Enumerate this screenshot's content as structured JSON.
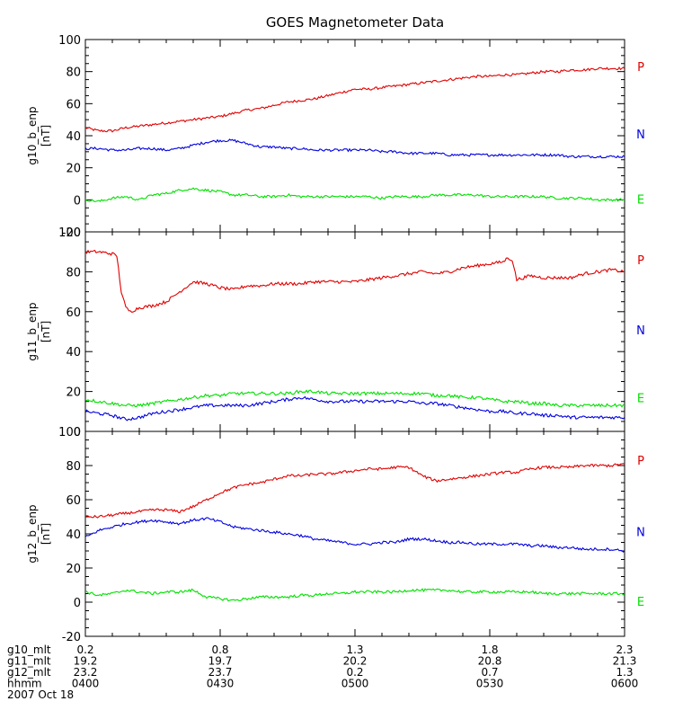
{
  "chart_data": {
    "type": "line",
    "title": "GOES Magnetometer Data",
    "x_ticks": [
      "0400",
      "0430",
      "0500",
      "0530",
      "0600"
    ],
    "x_tick_values_minutes": [
      0,
      30,
      60,
      90,
      120
    ],
    "xlim_minutes": [
      0,
      120
    ],
    "footer": {
      "rows": [
        {
          "label": "g10_mlt",
          "values": [
            "0.2",
            "0.8",
            "1.3",
            "1.8",
            "2.3"
          ]
        },
        {
          "label": "g11_mlt",
          "values": [
            "19.2",
            "19.7",
            "20.2",
            "20.8",
            "21.3"
          ]
        },
        {
          "label": "g12_mlt",
          "values": [
            "23.2",
            "23.7",
            "0.2",
            "0.7",
            "1.3"
          ]
        },
        {
          "label": "hhmm",
          "values": [
            "0400",
            "0430",
            "0500",
            "0530",
            "0600"
          ]
        }
      ],
      "date": "2007 Oct 18"
    },
    "colors": {
      "P": "#e00000",
      "N": "#0000e0",
      "E": "#00e000"
    },
    "panels": [
      {
        "ylabel": "g10_b_enp",
        "unit": "[nT]",
        "ylim": [
          -20,
          100
        ],
        "yticks": [
          -20,
          0,
          20,
          40,
          60,
          80,
          100
        ],
        "legend": [
          "P",
          "N",
          "E"
        ],
        "series": [
          {
            "name": "P",
            "x": [
              0,
              3,
              6,
              9,
              12,
              15,
              18,
              21,
              24,
              27,
              30,
              33,
              36,
              39,
              42,
              45,
              48,
              51,
              54,
              57,
              60,
              63,
              66,
              69,
              72,
              75,
              78,
              81,
              84,
              87,
              90,
              93,
              96,
              99,
              102,
              105,
              108,
              111,
              114,
              117,
              120
            ],
            "y": [
              45,
              43,
              43,
              45,
              46,
              47,
              48,
              49,
              50,
              51,
              52,
              54,
              56,
              57,
              59,
              61,
              62,
              63,
              65,
              67,
              69,
              69,
              70,
              71,
              72,
              73,
              74,
              75,
              76,
              77,
              77,
              78,
              78,
              79,
              80,
              80,
              81,
              81,
              82,
              82,
              82
            ]
          },
          {
            "name": "N",
            "x": [
              0,
              3,
              6,
              9,
              12,
              15,
              18,
              21,
              24,
              27,
              30,
              33,
              36,
              39,
              42,
              45,
              48,
              51,
              54,
              57,
              60,
              63,
              66,
              69,
              72,
              75,
              78,
              81,
              84,
              87,
              90,
              93,
              96,
              99,
              102,
              105,
              108,
              111,
              114,
              117,
              120
            ],
            "y": [
              32,
              32,
              31,
              31,
              32,
              32,
              31,
              32,
              34,
              36,
              37,
              37,
              35,
              33,
              33,
              32,
              32,
              31,
              31,
              31,
              31,
              31,
              30,
              30,
              29,
              29,
              29,
              28,
              28,
              28,
              28,
              28,
              28,
              28,
              28,
              28,
              27,
              27,
              27,
              27,
              27
            ]
          },
          {
            "name": "E",
            "x": [
              0,
              3,
              6,
              9,
              12,
              15,
              18,
              21,
              24,
              27,
              30,
              33,
              36,
              39,
              42,
              45,
              48,
              51,
              54,
              57,
              60,
              63,
              66,
              69,
              72,
              75,
              78,
              81,
              84,
              87,
              90,
              93,
              96,
              99,
              102,
              105,
              108,
              111,
              114,
              117,
              120
            ],
            "y": [
              0,
              -1,
              1,
              2,
              0,
              3,
              4,
              6,
              7,
              6,
              5,
              3,
              3,
              2,
              2,
              3,
              2,
              2,
              2,
              2,
              2,
              2,
              1,
              2,
              2,
              2,
              3,
              3,
              3,
              3,
              2,
              2,
              2,
              2,
              2,
              1,
              1,
              1,
              0,
              0,
              0
            ]
          }
        ]
      },
      {
        "ylabel": "g11_b_enp",
        "unit": "[nT]",
        "ylim": [
          0,
          100
        ],
        "yticks": [
          0,
          20,
          40,
          60,
          80,
          100
        ],
        "legend": [
          "P",
          "N",
          "E"
        ],
        "series": [
          {
            "name": "P",
            "x": [
              0,
              3,
              6,
              7,
              8,
              9,
              10,
              12,
              15,
              18,
              21,
              24,
              27,
              30,
              33,
              36,
              39,
              42,
              45,
              48,
              51,
              54,
              57,
              60,
              63,
              66,
              69,
              72,
              75,
              78,
              81,
              84,
              87,
              90,
              93,
              94,
              95,
              96,
              99,
              102,
              105,
              108,
              111,
              114,
              117,
              120
            ],
            "y": [
              90,
              90,
              89,
              88,
              70,
              62,
              60,
              62,
              63,
              65,
              70,
              75,
              74,
              72,
              71,
              73,
              73,
              74,
              74,
              74,
              75,
              75,
              75,
              75,
              76,
              77,
              78,
              79,
              80,
              79,
              80,
              82,
              83,
              84,
              85,
              87,
              86,
              76,
              78,
              77,
              77,
              77,
              79,
              80,
              81,
              80
            ]
          },
          {
            "name": "N",
            "x": [
              0,
              3,
              6,
              9,
              12,
              15,
              18,
              21,
              24,
              27,
              30,
              33,
              36,
              39,
              42,
              45,
              48,
              51,
              54,
              57,
              60,
              63,
              66,
              69,
              72,
              75,
              78,
              81,
              84,
              87,
              90,
              93,
              96,
              99,
              102,
              105,
              108,
              111,
              114,
              117,
              120
            ],
            "y": [
              10,
              9,
              8,
              6,
              7,
              9,
              10,
              11,
              12,
              13,
              13,
              13,
              13,
              14,
              15,
              16,
              17,
              16,
              15,
              15,
              15,
              15,
              15,
              15,
              15,
              14,
              14,
              13,
              12,
              11,
              10,
              10,
              9,
              9,
              8,
              8,
              7,
              7,
              7,
              7,
              7
            ]
          },
          {
            "name": "E",
            "x": [
              0,
              3,
              6,
              9,
              12,
              15,
              18,
              21,
              24,
              27,
              30,
              33,
              36,
              39,
              42,
              45,
              48,
              51,
              54,
              57,
              60,
              63,
              66,
              69,
              72,
              75,
              78,
              81,
              84,
              87,
              90,
              93,
              96,
              99,
              102,
              105,
              108,
              111,
              114,
              117,
              120
            ],
            "y": [
              16,
              15,
              14,
              13,
              13,
              14,
              15,
              16,
              17,
              18,
              18,
              19,
              19,
              19,
              19,
              19,
              20,
              20,
              19,
              19,
              19,
              19,
              19,
              19,
              19,
              19,
              18,
              18,
              17,
              17,
              16,
              15,
              15,
              14,
              14,
              13,
              13,
              13,
              13,
              13,
              13
            ]
          }
        ]
      },
      {
        "ylabel": "g12_b_enp",
        "unit": "[nT]",
        "ylim": [
          -20,
          100
        ],
        "yticks": [
          -20,
          0,
          20,
          40,
          60,
          80,
          100
        ],
        "legend": [
          "P",
          "N",
          "E"
        ],
        "series": [
          {
            "name": "P",
            "x": [
              0,
              3,
              6,
              9,
              12,
              15,
              18,
              21,
              24,
              27,
              30,
              33,
              36,
              39,
              42,
              45,
              48,
              51,
              54,
              57,
              60,
              63,
              66,
              69,
              72,
              75,
              78,
              81,
              84,
              87,
              90,
              93,
              96,
              99,
              102,
              105,
              108,
              111,
              114,
              117,
              120
            ],
            "y": [
              50,
              50,
              51,
              52,
              53,
              54,
              54,
              53,
              56,
              60,
              64,
              67,
              69,
              70,
              72,
              74,
              74,
              75,
              75,
              76,
              77,
              78,
              78,
              79,
              79,
              74,
              71,
              72,
              73,
              74,
              75,
              76,
              76,
              78,
              79,
              79,
              79,
              80,
              80,
              80,
              81
            ]
          },
          {
            "name": "N",
            "x": [
              0,
              3,
              6,
              9,
              12,
              15,
              18,
              21,
              24,
              27,
              30,
              33,
              36,
              39,
              42,
              45,
              48,
              51,
              54,
              57,
              60,
              63,
              66,
              69,
              72,
              75,
              78,
              81,
              84,
              87,
              90,
              93,
              96,
              99,
              102,
              105,
              108,
              111,
              114,
              117,
              120
            ],
            "y": [
              38,
              42,
              44,
              46,
              47,
              48,
              47,
              46,
              48,
              49,
              47,
              44,
              43,
              42,
              41,
              40,
              39,
              37,
              36,
              35,
              34,
              34,
              35,
              35,
              37,
              37,
              36,
              35,
              35,
              34,
              34,
              34,
              34,
              33,
              33,
              32,
              32,
              31,
              31,
              31,
              30
            ]
          },
          {
            "name": "E",
            "x": [
              0,
              3,
              6,
              9,
              12,
              15,
              18,
              21,
              24,
              27,
              30,
              33,
              36,
              39,
              42,
              45,
              48,
              51,
              54,
              57,
              60,
              63,
              66,
              69,
              72,
              75,
              78,
              81,
              84,
              87,
              90,
              93,
              96,
              99,
              102,
              105,
              108,
              111,
              114,
              117,
              120
            ],
            "y": [
              6,
              4,
              5,
              7,
              6,
              5,
              6,
              6,
              7,
              3,
              2,
              1,
              2,
              3,
              3,
              3,
              4,
              4,
              5,
              5,
              6,
              6,
              6,
              6,
              7,
              7,
              7,
              7,
              6,
              6,
              6,
              6,
              6,
              6,
              5,
              5,
              5,
              5,
              5,
              5,
              5
            ]
          }
        ]
      }
    ]
  }
}
